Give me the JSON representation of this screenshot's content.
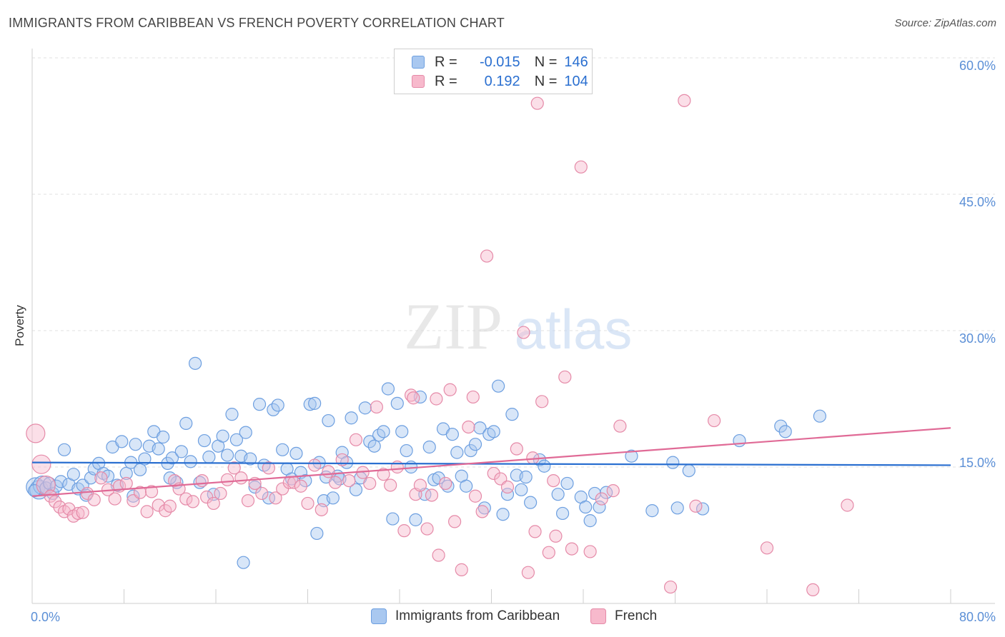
{
  "header": {
    "title": "IMMIGRANTS FROM CARIBBEAN VS FRENCH POVERTY CORRELATION CHART",
    "source": "Source: ZipAtlas.com"
  },
  "watermark": {
    "zip": "ZIP",
    "atlas": "atlas"
  },
  "legend": {
    "rows": [
      {
        "r_label": "R =",
        "r_value": "-0.015",
        "n_label": "N =",
        "n_value": "146",
        "color": "#a9c8f0",
        "border": "#6d9fe0"
      },
      {
        "r_label": "R =",
        "r_value": "0.192",
        "n_label": "N =",
        "n_value": "104",
        "color": "#f7b9cc",
        "border": "#e58aa8"
      }
    ]
  },
  "bottom_legend": [
    {
      "label": "Immigrants from Caribbean",
      "color": "#a9c8f0",
      "border": "#6d9fe0"
    },
    {
      "label": "French",
      "color": "#f7b9cc",
      "border": "#e58aa8"
    }
  ],
  "chart_data": {
    "type": "scatter",
    "ylabel": "Poverty",
    "xlim": [
      0,
      80
    ],
    "ylim": [
      0,
      60
    ],
    "x_tick_labels": [
      "0.0%",
      "80.0%"
    ],
    "y_ticks": [
      15,
      30,
      45,
      60
    ],
    "y_tick_labels": [
      "15.0%",
      "30.0%",
      "45.0%",
      "60.0%"
    ],
    "grid": true,
    "series": [
      {
        "name": "Immigrants from Caribbean",
        "color": "#6d9fe0",
        "fill": "#a9c8f0",
        "trend": {
          "start": [
            0,
            15.5
          ],
          "end": [
            80,
            15.2
          ],
          "color": "#2a6fd0"
        },
        "points": [
          [
            0.3,
            12.8
          ],
          [
            0.6,
            12.5
          ],
          [
            0.9,
            13.0
          ],
          [
            1.2,
            12.7
          ],
          [
            1.5,
            13.2
          ],
          [
            1.8,
            12.1
          ],
          [
            2.1,
            12.9
          ],
          [
            2.5,
            13.4
          ],
          [
            2.8,
            16.9
          ],
          [
            3.2,
            13.1
          ],
          [
            3.6,
            14.2
          ],
          [
            4.0,
            12.6
          ],
          [
            4.4,
            13.0
          ],
          [
            4.7,
            11.9
          ],
          [
            5.1,
            13.8
          ],
          [
            5.4,
            14.8
          ],
          [
            5.8,
            15.4
          ],
          [
            6.2,
            14.3
          ],
          [
            6.6,
            14.0
          ],
          [
            7.0,
            17.2
          ],
          [
            7.4,
            13.0
          ],
          [
            7.8,
            17.8
          ],
          [
            8.2,
            14.3
          ],
          [
            8.6,
            15.5
          ],
          [
            9.0,
            17.5
          ],
          [
            9.4,
            14.7
          ],
          [
            9.8,
            15.9
          ],
          [
            10.2,
            17.3
          ],
          [
            10.6,
            18.9
          ],
          [
            11.0,
            17.0
          ],
          [
            11.4,
            18.3
          ],
          [
            11.8,
            15.4
          ],
          [
            12.2,
            16.0
          ],
          [
            12.6,
            13.3
          ],
          [
            13.0,
            16.7
          ],
          [
            13.4,
            19.8
          ],
          [
            13.8,
            15.6
          ],
          [
            14.2,
            26.4
          ],
          [
            14.6,
            13.3
          ],
          [
            15.0,
            17.9
          ],
          [
            15.4,
            16.1
          ],
          [
            15.8,
            12.0
          ],
          [
            16.2,
            17.3
          ],
          [
            16.6,
            18.4
          ],
          [
            17.0,
            16.3
          ],
          [
            17.4,
            20.8
          ],
          [
            17.8,
            18.0
          ],
          [
            18.2,
            16.2
          ],
          [
            18.6,
            18.8
          ],
          [
            19.0,
            15.9
          ],
          [
            19.4,
            12.8
          ],
          [
            19.8,
            21.9
          ],
          [
            20.2,
            15.2
          ],
          [
            20.6,
            11.6
          ],
          [
            21.0,
            21.3
          ],
          [
            21.4,
            21.8
          ],
          [
            21.8,
            16.9
          ],
          [
            22.2,
            14.8
          ],
          [
            22.6,
            13.7
          ],
          [
            23.0,
            16.5
          ],
          [
            23.4,
            14.4
          ],
          [
            23.8,
            13.5
          ],
          [
            24.2,
            21.9
          ],
          [
            24.6,
            22.0
          ],
          [
            25.0,
            15.5
          ],
          [
            25.4,
            11.3
          ],
          [
            25.8,
            20.1
          ],
          [
            26.2,
            11.6
          ],
          [
            26.6,
            14.0
          ],
          [
            27.0,
            16.6
          ],
          [
            27.4,
            15.5
          ],
          [
            27.8,
            20.4
          ],
          [
            28.2,
            12.5
          ],
          [
            28.6,
            13.8
          ],
          [
            29.0,
            21.5
          ],
          [
            29.4,
            17.8
          ],
          [
            29.8,
            17.3
          ],
          [
            30.2,
            18.5
          ],
          [
            30.6,
            18.9
          ],
          [
            31.0,
            23.6
          ],
          [
            31.4,
            9.3
          ],
          [
            31.8,
            22.0
          ],
          [
            32.2,
            18.9
          ],
          [
            32.6,
            16.8
          ],
          [
            33.0,
            15.0
          ],
          [
            33.4,
            9.2
          ],
          [
            33.8,
            22.7
          ],
          [
            34.2,
            12.0
          ],
          [
            34.6,
            17.2
          ],
          [
            35.0,
            13.6
          ],
          [
            35.4,
            13.8
          ],
          [
            35.8,
            19.2
          ],
          [
            36.2,
            12.9
          ],
          [
            36.6,
            18.6
          ],
          [
            37.0,
            16.6
          ],
          [
            37.4,
            14.0
          ],
          [
            37.8,
            12.9
          ],
          [
            38.2,
            16.8
          ],
          [
            38.6,
            17.5
          ],
          [
            39.0,
            19.3
          ],
          [
            39.4,
            10.5
          ],
          [
            39.8,
            18.6
          ],
          [
            40.2,
            18.9
          ],
          [
            40.6,
            23.9
          ],
          [
            41.0,
            9.8
          ],
          [
            41.4,
            12.0
          ],
          [
            41.8,
            20.8
          ],
          [
            42.2,
            14.1
          ],
          [
            42.6,
            12.5
          ],
          [
            43.0,
            13.9
          ],
          [
            43.4,
            11.1
          ],
          [
            44.2,
            15.8
          ],
          [
            44.6,
            15.1
          ],
          [
            45.8,
            12.0
          ],
          [
            46.2,
            9.9
          ],
          [
            46.6,
            13.2
          ],
          [
            47.8,
            11.7
          ],
          [
            48.2,
            10.6
          ],
          [
            48.6,
            9.1
          ],
          [
            49.0,
            12.1
          ],
          [
            49.4,
            10.6
          ],
          [
            50.0,
            12.2
          ],
          [
            52.2,
            16.2
          ],
          [
            54.0,
            10.2
          ],
          [
            55.8,
            15.5
          ],
          [
            56.2,
            10.5
          ],
          [
            57.2,
            14.6
          ],
          [
            58.4,
            10.4
          ],
          [
            61.6,
            17.9
          ],
          [
            65.2,
            19.5
          ],
          [
            65.6,
            18.9
          ],
          [
            68.6,
            20.6
          ],
          [
            18.4,
            4.5
          ],
          [
            24.8,
            7.7
          ],
          [
            25.6,
            13.9
          ],
          [
            26.8,
            13.7
          ],
          [
            8.8,
            11.8
          ],
          [
            12.0,
            13.8
          ],
          [
            0.2,
            12.4
          ]
        ]
      },
      {
        "name": "French",
        "color": "#e58aa8",
        "fill": "#f7b9cc",
        "trend": {
          "start": [
            0,
            11.8
          ],
          "end": [
            80,
            19.3
          ],
          "color": "#e06a96"
        },
        "points": [
          [
            0.3,
            18.7
          ],
          [
            0.8,
            15.3
          ],
          [
            1.2,
            13.0
          ],
          [
            1.6,
            11.8
          ],
          [
            2.0,
            11.2
          ],
          [
            2.4,
            10.6
          ],
          [
            2.8,
            10.1
          ],
          [
            3.2,
            10.4
          ],
          [
            3.6,
            9.6
          ],
          [
            4.0,
            9.9
          ],
          [
            4.4,
            10.0
          ],
          [
            4.8,
            12.1
          ],
          [
            5.4,
            11.4
          ],
          [
            6.0,
            13.8
          ],
          [
            6.6,
            12.5
          ],
          [
            7.2,
            11.5
          ],
          [
            7.6,
            12.9
          ],
          [
            8.2,
            13.2
          ],
          [
            8.8,
            11.3
          ],
          [
            9.4,
            12.2
          ],
          [
            10.0,
            10.1
          ],
          [
            10.4,
            12.3
          ],
          [
            11.0,
            10.8
          ],
          [
            11.6,
            10.2
          ],
          [
            12.0,
            10.7
          ],
          [
            12.4,
            13.5
          ],
          [
            12.8,
            12.6
          ],
          [
            13.4,
            11.5
          ],
          [
            14.0,
            11.2
          ],
          [
            14.8,
            13.5
          ],
          [
            15.2,
            11.7
          ],
          [
            15.8,
            11.0
          ],
          [
            16.4,
            12.1
          ],
          [
            17.0,
            13.6
          ],
          [
            17.6,
            14.9
          ],
          [
            18.2,
            13.8
          ],
          [
            18.8,
            11.3
          ],
          [
            19.4,
            13.2
          ],
          [
            20.0,
            12.1
          ],
          [
            20.6,
            14.9
          ],
          [
            21.2,
            11.6
          ],
          [
            21.8,
            12.6
          ],
          [
            22.4,
            13.3
          ],
          [
            22.8,
            13.3
          ],
          [
            23.4,
            12.9
          ],
          [
            24.0,
            11.0
          ],
          [
            24.6,
            15.2
          ],
          [
            25.2,
            10.3
          ],
          [
            25.8,
            14.5
          ],
          [
            26.4,
            13.3
          ],
          [
            27.0,
            15.8
          ],
          [
            27.6,
            13.5
          ],
          [
            28.2,
            18.0
          ],
          [
            28.8,
            14.4
          ],
          [
            29.4,
            13.2
          ],
          [
            30.0,
            21.6
          ],
          [
            30.6,
            14.2
          ],
          [
            31.2,
            13.0
          ],
          [
            31.8,
            15.0
          ],
          [
            32.4,
            8.0
          ],
          [
            33.0,
            22.9
          ],
          [
            33.4,
            12.0
          ],
          [
            33.8,
            13.0
          ],
          [
            34.4,
            8.2
          ],
          [
            34.8,
            11.9
          ],
          [
            35.4,
            5.3
          ],
          [
            36.0,
            13.2
          ],
          [
            36.4,
            23.5
          ],
          [
            36.8,
            9.0
          ],
          [
            37.4,
            3.7
          ],
          [
            38.0,
            19.4
          ],
          [
            38.6,
            11.8
          ],
          [
            39.2,
            10.1
          ],
          [
            39.6,
            38.2
          ],
          [
            40.2,
            14.3
          ],
          [
            40.8,
            13.7
          ],
          [
            41.4,
            12.8
          ],
          [
            42.2,
            17.0
          ],
          [
            42.8,
            29.8
          ],
          [
            43.2,
            3.4
          ],
          [
            43.8,
            7.9
          ],
          [
            44.4,
            22.2
          ],
          [
            45.0,
            5.6
          ],
          [
            45.6,
            7.4
          ],
          [
            46.4,
            24.9
          ],
          [
            47.0,
            6.0
          ],
          [
            47.8,
            48.0
          ],
          [
            48.6,
            5.7
          ],
          [
            49.6,
            11.5
          ],
          [
            50.6,
            12.4
          ],
          [
            51.2,
            19.5
          ],
          [
            55.6,
            1.8
          ],
          [
            57.8,
            10.7
          ],
          [
            59.4,
            20.1
          ],
          [
            64.0,
            6.1
          ],
          [
            68.0,
            1.5
          ],
          [
            71.0,
            10.8
          ],
          [
            44.0,
            55.0
          ],
          [
            56.8,
            55.3
          ],
          [
            33.2,
            22.6
          ],
          [
            38.4,
            22.7
          ],
          [
            35.2,
            22.5
          ],
          [
            45.4,
            13.5
          ],
          [
            43.6,
            16.0
          ]
        ]
      }
    ]
  }
}
